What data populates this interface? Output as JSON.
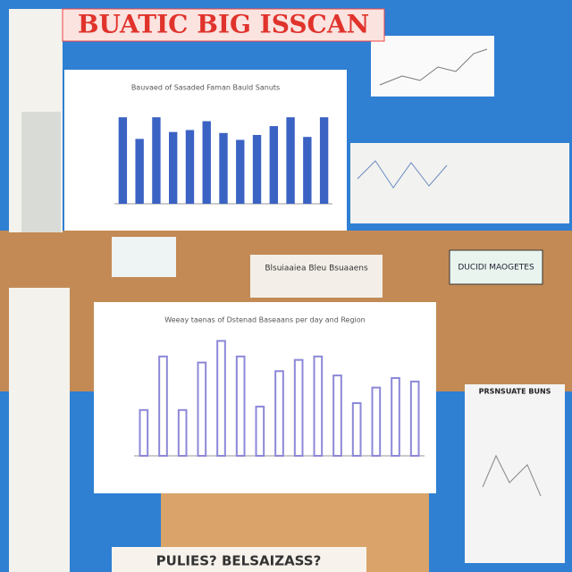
{
  "header": {
    "title": "BUATIC BIG ISSCAN"
  },
  "labels": [
    "DUCIDI MAOGETES",
    "Blsuiaaiea Bleu Bsuaaens",
    "PRSNSUATE BUNS",
    "PULIES? BELSAIZASS?"
  ],
  "chart_data": [
    {
      "type": "bar",
      "title": "Bauvaed of Sasaded Faman Bauld Sanuts",
      "color": "#3b63c4",
      "values": [
        88,
        66,
        88,
        73,
        75,
        84,
        72,
        65,
        70,
        79,
        88,
        68,
        88
      ],
      "ylim": [
        0,
        100
      ]
    },
    {
      "type": "bar",
      "title": "Weeay taenas of Dstenad Baseaans per day and Region",
      "color": "#8c88d8",
      "values": [
        53,
        115,
        53,
        108,
        133,
        115,
        57,
        98,
        111,
        115,
        93,
        61,
        79,
        90,
        86
      ],
      "ylim": [
        0,
        150
      ]
    }
  ]
}
